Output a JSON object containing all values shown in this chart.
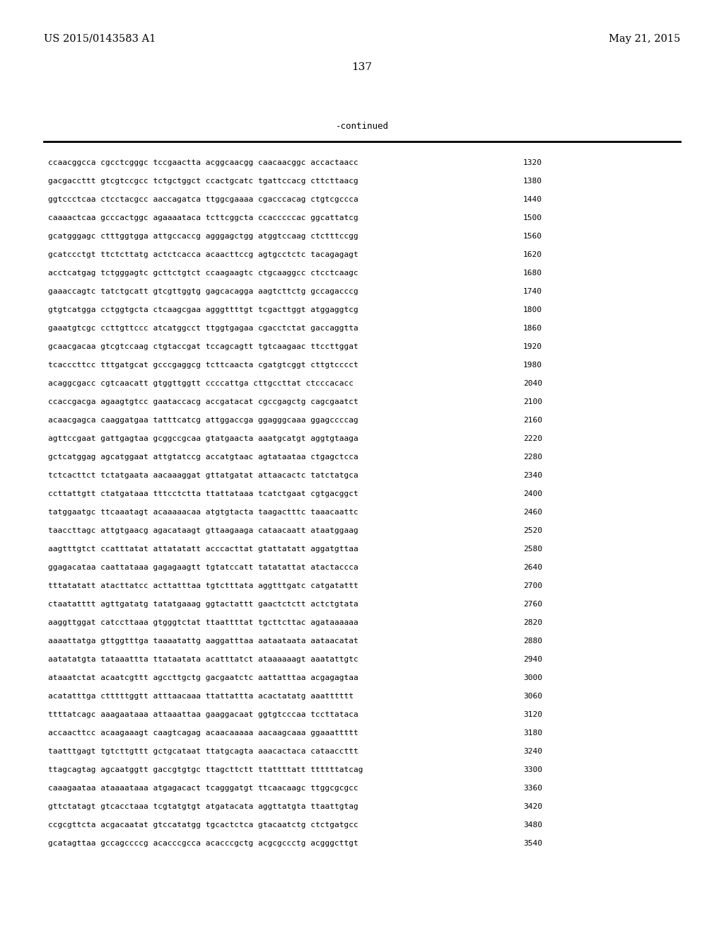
{
  "header_left": "US 2015/0143583 A1",
  "header_right": "May 21, 2015",
  "page_number": "137",
  "continued_label": "-continued",
  "background_color": "#ffffff",
  "text_color": "#000000",
  "sequence_lines": [
    [
      "ccaacggcca cgcctcgggc tccgaactta acggcaacgg caacaacggc accactaacc",
      "1320"
    ],
    [
      "gacgaccttt gtcgtccgcc tctgctggct ccactgcatc tgattccacg cttcttaacg",
      "1380"
    ],
    [
      "ggtccctcaa ctcctacgcc aaccagatca ttggcgaaaa cgacccacag ctgtcgccca",
      "1440"
    ],
    [
      "caaaactcaa gcccactggc agaaaataca tcttcggcta ccacccccac ggcattatcg",
      "1500"
    ],
    [
      "gcatgggagc ctttggtgga attgccaccg agggagctgg atggtccaag ctctttccgg",
      "1560"
    ],
    [
      "gcatccctgt ttctcttatg actctcacca acaacttccg agtgcctctc tacagagagt",
      "1620"
    ],
    [
      "acctcatgag tctgggagtc gcttctgtct ccaagaagtc ctgcaaggcc ctcctcaagc",
      "1680"
    ],
    [
      "gaaaccagtc tatctgcatt gtcgttggtg gagcacagga aagtcttctg gccagacccg",
      "1740"
    ],
    [
      "gtgtcatgga cctggtgcta ctcaagcgaa agggttttgt tcgacttggt atggaggtcg",
      "1800"
    ],
    [
      "gaaatgtcgc ccttgttccc atcatggcct ttggtgagaa cgacctctat gaccaggtta",
      "1860"
    ],
    [
      "gcaacgacaa gtcgtccaag ctgtaccgat tccagcagtt tgtcaagaac ttccttggat",
      "1920"
    ],
    [
      "tcacccttcc tttgatgcat gcccgaggcg tcttcaacta cgatgtcggt cttgtcccct",
      "1980"
    ],
    [
      "acaggcgacc cgtcaacatt gtggttggtt ccccattga cttgccttat ctcccacacc",
      "2040"
    ],
    [
      "ccaccgacga agaagtgtcc gaataccacg accgatacat cgccgagctg cagcgaatct",
      "2100"
    ],
    [
      "acaacgagca caaggatgaa tatttcatcg attggaccga ggagggcaaa ggagccccag",
      "2160"
    ],
    [
      "agttccgaat gattgagtaa gcggccgcaa gtatgaacta aaatgcatgt aggtgtaaga",
      "2220"
    ],
    [
      "gctcatggag agcatggaat attgtatccg accatgtaac agtataataa ctgagctcca",
      "2280"
    ],
    [
      "tctcacttct tctatgaata aacaaaggat gttatgatat attaacactc tatctatgca",
      "2340"
    ],
    [
      "ccttattgtt ctatgataaa tttcctctta ttattataaa tcatctgaat cgtgacggct",
      "2400"
    ],
    [
      "tatggaatgc ttcaaatagt acaaaaacaa atgtgtacta taagactttc taaacaattc",
      "2460"
    ],
    [
      "taaccttagc attgtgaacg agacataagt gttaagaaga cataacaatt ataatggaag",
      "2520"
    ],
    [
      "aagtttgtct ccatttatat attatatatt acccacttat gtattatatt aggatgttaa",
      "2580"
    ],
    [
      "ggagacataa caattataaa gagagaagtt tgtatccatt tatatattat atactaccca",
      "2640"
    ],
    [
      "tttatatatt atacttatcc acttatttaa tgtctttata aggtttgatc catgatattt",
      "2700"
    ],
    [
      "ctaatatttt agttgatatg tatatgaaag ggtactattt gaactctctt actctgtata",
      "2760"
    ],
    [
      "aaggttggat catccttaaa gtgggtctat ttaattttat tgcttcttac agataaaaaa",
      "2820"
    ],
    [
      "aaaattatga gttggtttga taaaatattg aaggatttaa aataataata aataacatat",
      "2880"
    ],
    [
      "aatatatgta tataaattta ttataatata acatttatct ataaaaaagt aaatattgtc",
      "2940"
    ],
    [
      "ataaatctat acaatcgttt agccttgctg gacgaatctc aattatttaa acgagagtaa",
      "3000"
    ],
    [
      "acatatttga ctttttggtt atttaacaaa ttattattta acactatatg aaatttttt",
      "3060"
    ],
    [
      "ttttatcagc aaagaataaa attaaattaa gaaggacaat ggtgtcccaa tccttataca",
      "3120"
    ],
    [
      "accaacttcc acaagaaagt caagtcagag acaacaaaaa aacaagcaaa ggaaattttt",
      "3180"
    ],
    [
      "taatttgagt tgtcttgttt gctgcataat ttatgcagta aaacactaca cataaccttt",
      "3240"
    ],
    [
      "ttagcagtag agcaatggtt gaccgtgtgc ttagcttctt ttattttatt ttttttatcag",
      "3300"
    ],
    [
      "caaagaataa ataaaataaa atgagacact tcagggatgt ttcaacaagc ttggcgcgcc",
      "3360"
    ],
    [
      "gttctatagt gtcacctaaa tcgtatgtgt atgatacata aggttatgta ttaattgtag",
      "3420"
    ],
    [
      "ccgcgttcta acgacaatat gtccatatgg tgcactctca gtacaatctg ctctgatgcc",
      "3480"
    ],
    [
      "gcatagttaa gccagccccg acacccgcca acacccgctg acgcgccctg acgggcttgt",
      "3540"
    ]
  ]
}
